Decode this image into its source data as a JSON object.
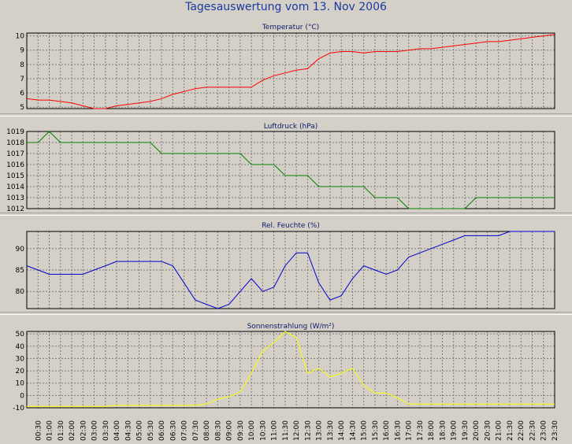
{
  "title": "Tagesauswertung vom 13. Nov 2006",
  "time_labels": [
    "00:30",
    "01:00",
    "01:30",
    "02:00",
    "02:30",
    "03:00",
    "03:30",
    "04:00",
    "04:30",
    "05:00",
    "05:30",
    "06:00",
    "06:30",
    "07:00",
    "07:30",
    "08:00",
    "08:30",
    "09:00",
    "09:30",
    "10:00",
    "10:30",
    "11:00",
    "11:30",
    "12:00",
    "12:30",
    "13:00",
    "13:30",
    "14:00",
    "14:30",
    "15:00",
    "15:30",
    "16:00",
    "16:30",
    "17:00",
    "17:30",
    "18:00",
    "18:30",
    "19:00",
    "19:30",
    "20:00",
    "20:30",
    "21:00",
    "21:30",
    "22:00",
    "22:30",
    "23:00",
    "23:30"
  ],
  "chart_data": [
    {
      "type": "line",
      "title": "Temperatur (°C)",
      "color": "#ff0000",
      "ylim": [
        4.9,
        10.2
      ],
      "yticks": [
        5,
        6,
        7,
        8,
        9,
        10
      ],
      "x": [
        "00:00",
        "00:30",
        "01:00",
        "01:30",
        "02:00",
        "02:30",
        "03:00",
        "03:30",
        "04:00",
        "04:30",
        "05:00",
        "05:30",
        "06:00",
        "06:30",
        "07:00",
        "07:30",
        "08:00",
        "08:30",
        "09:00",
        "09:30",
        "10:00",
        "10:30",
        "11:00",
        "11:30",
        "12:00",
        "12:30",
        "13:00",
        "13:30",
        "14:00",
        "14:30",
        "15:00",
        "15:30",
        "16:00",
        "16:30",
        "17:00",
        "17:30",
        "18:00",
        "18:30",
        "19:00",
        "19:30",
        "20:00",
        "20:30",
        "21:00",
        "21:30",
        "22:00",
        "22:30",
        "23:00",
        "23:30"
      ],
      "values": [
        5.6,
        5.5,
        5.5,
        5.4,
        5.3,
        5.1,
        4.9,
        4.9,
        5.1,
        5.2,
        5.3,
        5.4,
        5.6,
        5.9,
        6.1,
        6.3,
        6.4,
        6.4,
        6.4,
        6.4,
        6.4,
        6.9,
        7.2,
        7.4,
        7.6,
        7.7,
        8.4,
        8.8,
        8.9,
        8.9,
        8.8,
        8.9,
        8.9,
        8.9,
        9.0,
        9.1,
        9.1,
        9.2,
        9.3,
        9.4,
        9.5,
        9.6,
        9.6,
        9.7,
        9.8,
        9.9,
        10.0,
        10.1
      ]
    },
    {
      "type": "line",
      "title": "Luftdruck (hPa)",
      "color": "#008000",
      "ylim": [
        1012,
        1019
      ],
      "yticks": [
        1012,
        1013,
        1014,
        1015,
        1016,
        1017,
        1018,
        1019
      ],
      "x": [
        "00:00",
        "00:30",
        "01:00",
        "01:30",
        "02:00",
        "02:30",
        "03:00",
        "03:30",
        "04:00",
        "04:30",
        "05:00",
        "05:30",
        "06:00",
        "06:30",
        "07:00",
        "07:30",
        "08:00",
        "08:30",
        "09:00",
        "09:30",
        "10:00",
        "10:30",
        "11:00",
        "11:30",
        "12:00",
        "12:30",
        "13:00",
        "13:30",
        "14:00",
        "14:30",
        "15:00",
        "15:30",
        "16:00",
        "16:30",
        "17:00",
        "17:30",
        "18:00",
        "18:30",
        "19:00",
        "19:30",
        "20:00",
        "20:30",
        "21:00",
        "21:30",
        "22:00",
        "22:30",
        "23:00",
        "23:30"
      ],
      "values": [
        1018,
        1018,
        1019,
        1018,
        1018,
        1018,
        1018,
        1018,
        1018,
        1018,
        1018,
        1018,
        1017,
        1017,
        1017,
        1017,
        1017,
        1017,
        1017,
        1017,
        1016,
        1016,
        1016,
        1015,
        1015,
        1015,
        1014,
        1014,
        1014,
        1014,
        1014,
        1013,
        1013,
        1013,
        1012,
        1012,
        1012,
        1012,
        1012,
        1012,
        1013,
        1013,
        1013,
        1013,
        1013,
        1013,
        1013,
        1013
      ]
    },
    {
      "type": "line",
      "title": "Rel. Feuchte (%)",
      "color": "#0000cc",
      "ylim": [
        76,
        94
      ],
      "yticks": [
        80,
        85,
        90
      ],
      "x": [
        "00:00",
        "00:30",
        "01:00",
        "01:30",
        "02:00",
        "02:30",
        "03:00",
        "03:30",
        "04:00",
        "04:30",
        "05:00",
        "05:30",
        "06:00",
        "06:30",
        "07:00",
        "07:30",
        "08:00",
        "08:30",
        "09:00",
        "09:30",
        "10:00",
        "10:30",
        "11:00",
        "11:30",
        "12:00",
        "12:30",
        "13:00",
        "13:30",
        "14:00",
        "14:30",
        "15:00",
        "15:30",
        "16:00",
        "16:30",
        "17:00",
        "17:30",
        "18:00",
        "18:30",
        "19:00",
        "19:30",
        "20:00",
        "20:30",
        "21:00",
        "21:30",
        "22:00",
        "22:30",
        "23:00",
        "23:30"
      ],
      "values": [
        86,
        85,
        84,
        84,
        84,
        84,
        85,
        86,
        87,
        87,
        87,
        87,
        87,
        86,
        82,
        78,
        77,
        76,
        77,
        80,
        83,
        80,
        81,
        86,
        89,
        89,
        82,
        78,
        79,
        83,
        86,
        85,
        84,
        85,
        88,
        89,
        90,
        91,
        92,
        93,
        93,
        93,
        93,
        94,
        94,
        94,
        94,
        94
      ]
    },
    {
      "type": "line",
      "title": "Sonnenstrahlung (W/m²)",
      "color": "#ffff00",
      "ylim": [
        -10,
        52
      ],
      "yticks": [
        -10,
        0,
        10,
        20,
        30,
        40,
        50
      ],
      "x": [
        "00:00",
        "00:30",
        "01:00",
        "01:30",
        "02:00",
        "02:30",
        "03:00",
        "03:30",
        "04:00",
        "04:30",
        "05:00",
        "05:30",
        "06:00",
        "06:30",
        "07:00",
        "07:30",
        "08:00",
        "08:30",
        "09:00",
        "09:30",
        "10:00",
        "10:30",
        "11:00",
        "11:30",
        "12:00",
        "12:30",
        "13:00",
        "13:30",
        "14:00",
        "14:30",
        "15:00",
        "15:30",
        "16:00",
        "16:30",
        "17:00",
        "17:30",
        "18:00",
        "18:30",
        "19:00",
        "19:30",
        "20:00",
        "20:30",
        "21:00",
        "21:30",
        "22:00",
        "22:30",
        "23:00",
        "23:30"
      ],
      "values": [
        -9,
        -9,
        -9,
        -9,
        -9,
        -9,
        -9,
        -9,
        -8,
        -8,
        -8,
        -8,
        -8,
        -8,
        -8,
        -8,
        -7,
        -3,
        -1,
        3,
        18,
        36,
        43,
        52,
        47,
        18,
        22,
        15,
        18,
        22,
        8,
        2,
        2,
        -2,
        -7,
        -7,
        -7,
        -7,
        -7,
        -7,
        -7,
        -7,
        -7,
        -7,
        -7,
        -7,
        -7,
        -7
      ]
    }
  ]
}
